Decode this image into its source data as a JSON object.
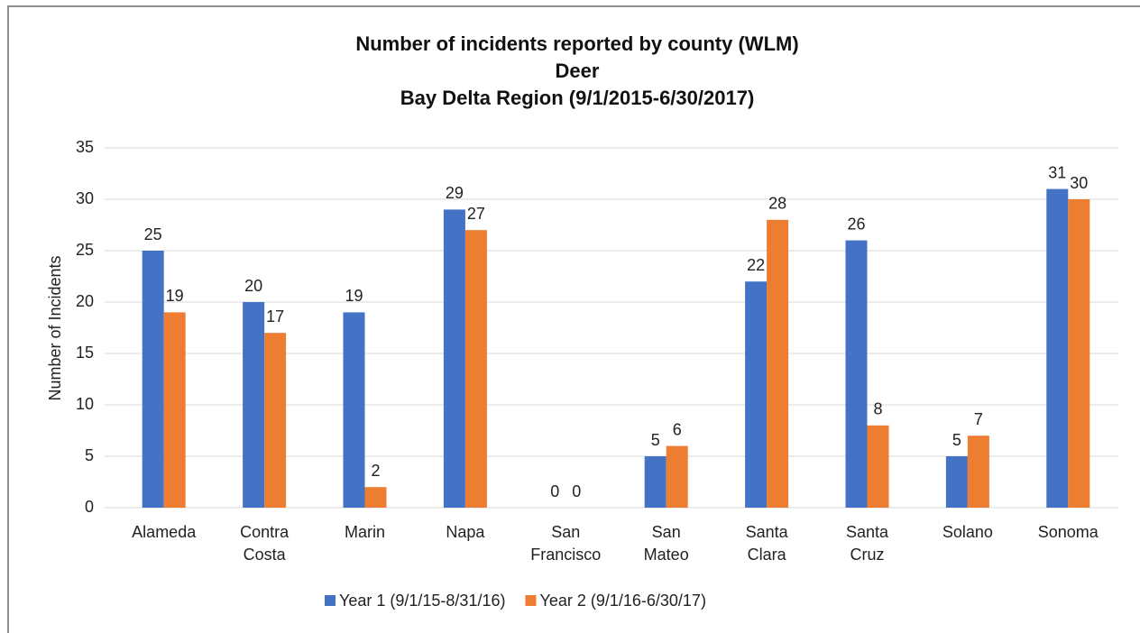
{
  "chart_data": {
    "type": "bar",
    "title": [
      "Number of incidents reported by county (WLM)",
      "Deer",
      "Bay Delta Region (9/1/2015-6/30/2017)"
    ],
    "ylabel": "Number of Incidents",
    "categories": [
      "Alameda",
      "Contra Costa",
      "Marin",
      "Napa",
      "San Francisco",
      "San Mateo",
      "Santa Clara",
      "Santa Cruz",
      "Solano",
      "Sonoma"
    ],
    "series": [
      {
        "name": "Year 1 (9/1/15-8/31/16)",
        "color": "#4472c4",
        "values": [
          25,
          20,
          19,
          29,
          0,
          5,
          22,
          26,
          5,
          31
        ]
      },
      {
        "name": "Year 2 (9/1/16-6/30/17)",
        "color": "#ed7d31",
        "values": [
          19,
          17,
          2,
          27,
          0,
          6,
          28,
          8,
          7,
          30
        ]
      }
    ],
    "ylim": [
      0,
      35
    ],
    "yticks": [
      0,
      5,
      10,
      15,
      20,
      25,
      30,
      35
    ],
    "grid": true,
    "legend": "bottom"
  }
}
